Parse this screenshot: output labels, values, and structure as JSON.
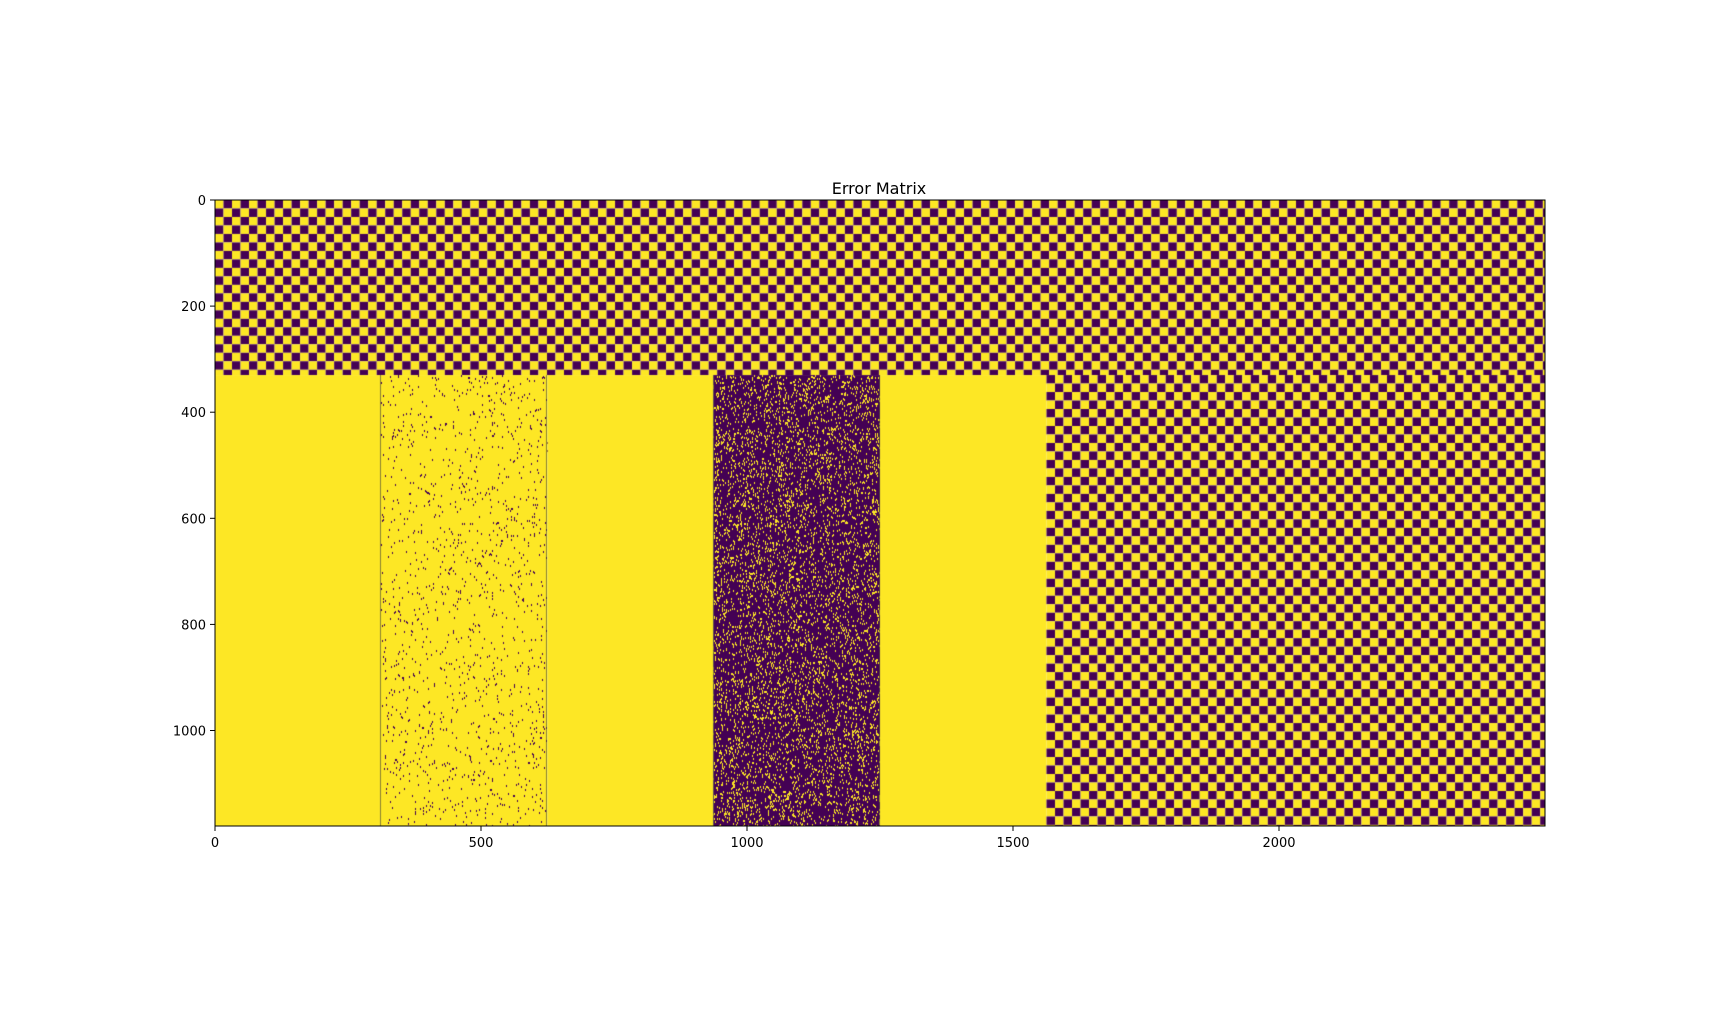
{
  "chart_data": {
    "type": "heatmap",
    "title": "Error Matrix",
    "xlabel": "",
    "ylabel": "",
    "n_cols": 2500,
    "n_rows": 1180,
    "xlim": [
      0,
      2500
    ],
    "ylim": [
      1180,
      0
    ],
    "x_ticks": [
      0,
      500,
      1000,
      1500,
      2000
    ],
    "y_ticks": [
      0,
      200,
      400,
      600,
      800,
      1000
    ],
    "colormap": "viridis",
    "colors": {
      "low": "#440154",
      "high": "#fde725"
    },
    "value_range": [
      0,
      1
    ],
    "grid": false,
    "regions": [
      {
        "rows": [
          0,
          330
        ],
        "cols": [
          0,
          2500
        ],
        "pattern": "checkerboard",
        "cell_size": 16
      },
      {
        "rows": [
          330,
          1180
        ],
        "cols": [
          0,
          312
        ],
        "pattern": "solid",
        "value": 1
      },
      {
        "rows": [
          330,
          1180
        ],
        "cols": [
          312,
          625
        ],
        "pattern": "sparse-noise",
        "base_value": 1,
        "flip_fraction": 0.03
      },
      {
        "rows": [
          330,
          1180
        ],
        "cols": [
          625,
          937
        ],
        "pattern": "solid",
        "value": 1
      },
      {
        "rows": [
          330,
          1180
        ],
        "cols": [
          937,
          1250
        ],
        "pattern": "sparse-noise",
        "base_value": 0,
        "flip_fraction": 0.15
      },
      {
        "rows": [
          330,
          1180
        ],
        "cols": [
          1250,
          1563
        ],
        "pattern": "solid",
        "value": 1
      },
      {
        "rows": [
          330,
          1180
        ],
        "cols": [
          1563,
          2500
        ],
        "pattern": "checkerboard",
        "cell_size": 16
      }
    ]
  }
}
